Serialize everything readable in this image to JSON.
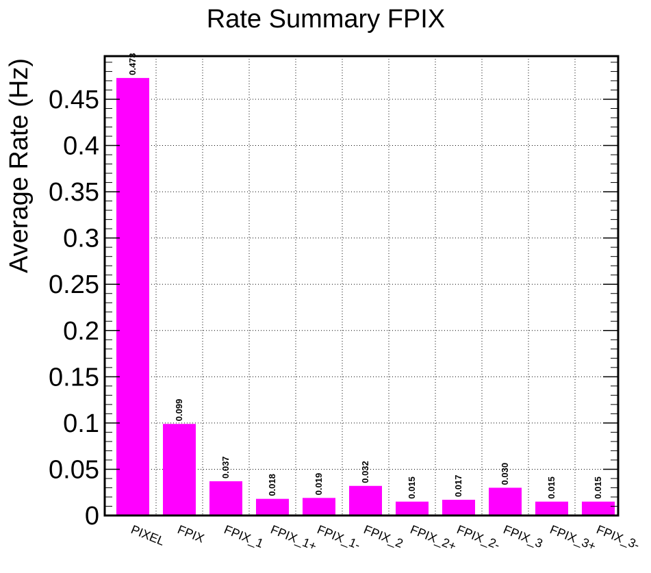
{
  "chart_data": {
    "type": "bar",
    "title": "Rate Summary FPIX",
    "xlabel": "",
    "ylabel": "Average Rate (Hz)",
    "categories": [
      "PIXEL",
      "FPIX",
      "FPIX_1",
      "FPIX_1+",
      "FPIX_1-",
      "FPIX_2",
      "FPIX_2+",
      "FPIX_2-",
      "FPIX_3",
      "FPIX_3+",
      "FPIX_3-"
    ],
    "values": [
      0.473,
      0.099,
      0.037,
      0.018,
      0.019,
      0.032,
      0.015,
      0.017,
      0.03,
      0.015,
      0.015
    ],
    "value_labels": [
      "0.473",
      "0.099",
      "0.037",
      "0.018",
      "0.019",
      "0.032",
      "0.015",
      "0.017",
      "0.030",
      "0.015",
      "0.015"
    ],
    "yticks": [
      0,
      0.05,
      0.1,
      0.15,
      0.2,
      0.25,
      0.3,
      0.35,
      0.4,
      0.45
    ],
    "ytick_labels": [
      "0",
      "0.05",
      "0.1",
      "0.15",
      "0.2",
      "0.25",
      "0.3",
      "0.35",
      "0.4",
      "0.45"
    ],
    "ylim": [
      0,
      0.4966
    ],
    "grid": true,
    "bar_color": "#ff00ff"
  }
}
